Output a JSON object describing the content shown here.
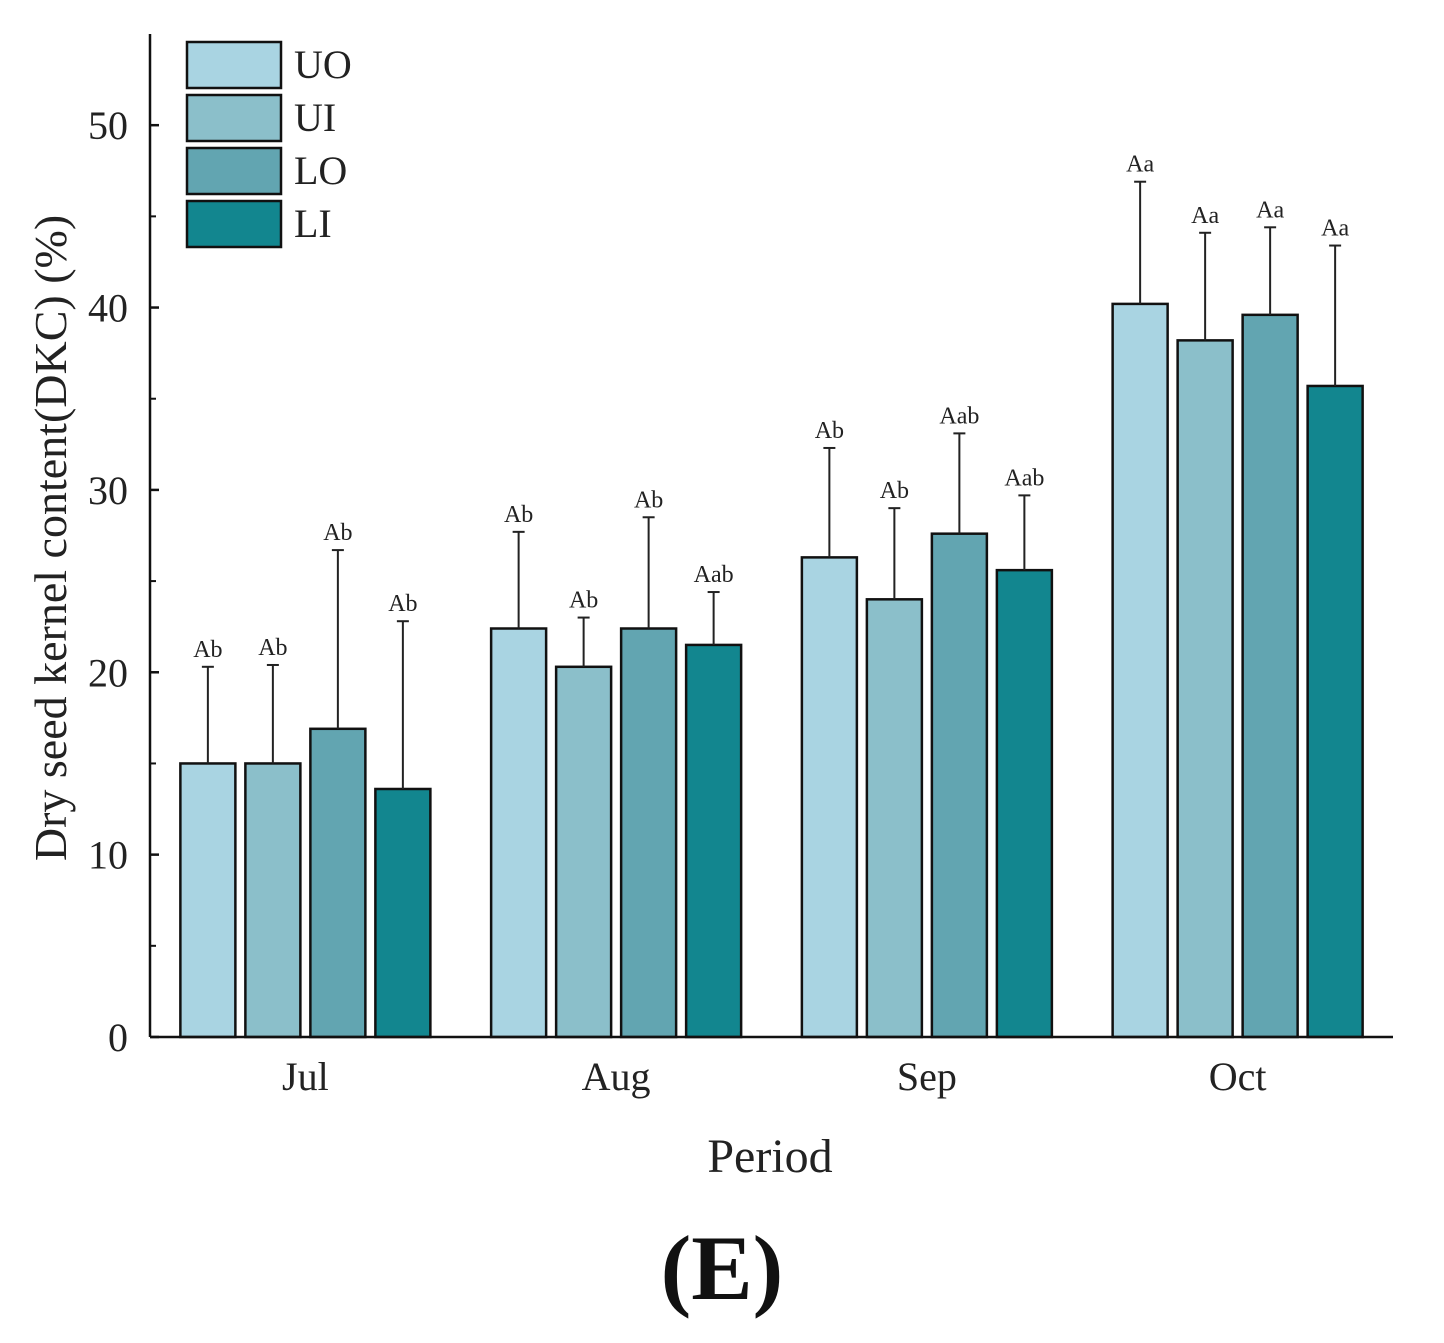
{
  "chart_data": {
    "type": "bar",
    "title": "",
    "xlabel": "Period",
    "ylabel": "Dry seed kernel content(DKC) (%)",
    "categories": [
      "Jul",
      "Aug",
      "Sep",
      "Oct"
    ],
    "ylim": [
      0,
      55
    ],
    "yticks": [
      0,
      10,
      20,
      30,
      40,
      50
    ],
    "legend_position": "top-left",
    "series": [
      {
        "name": "UO",
        "color": "#a9d4e2",
        "values": [
          15.0,
          22.4,
          26.3,
          40.2
        ],
        "errors": [
          5.3,
          5.3,
          6.0,
          6.7
        ],
        "labels": [
          "Ab",
          "Ab",
          "Ab",
          "Aa"
        ]
      },
      {
        "name": "UI",
        "color": "#8bbfca",
        "values": [
          15.0,
          20.3,
          24.0,
          38.2
        ],
        "errors": [
          5.4,
          2.7,
          5.0,
          5.9
        ],
        "labels": [
          "Ab",
          "Ab",
          "Ab",
          "Aa"
        ]
      },
      {
        "name": "LO",
        "color": "#62a5b1",
        "values": [
          16.9,
          22.4,
          27.6,
          39.6
        ],
        "errors": [
          9.8,
          6.1,
          5.5,
          4.8
        ],
        "labels": [
          "Ab",
          "Ab",
          "Aab",
          "Aa"
        ]
      },
      {
        "name": "LI",
        "color": "#12868f",
        "values": [
          13.6,
          21.5,
          25.6,
          35.7
        ],
        "errors": [
          9.2,
          2.9,
          4.1,
          7.7
        ],
        "labels": [
          "Ab",
          "Aab",
          "Aab",
          "Aa"
        ]
      }
    ]
  },
  "figure": {
    "caption": "(E)"
  }
}
